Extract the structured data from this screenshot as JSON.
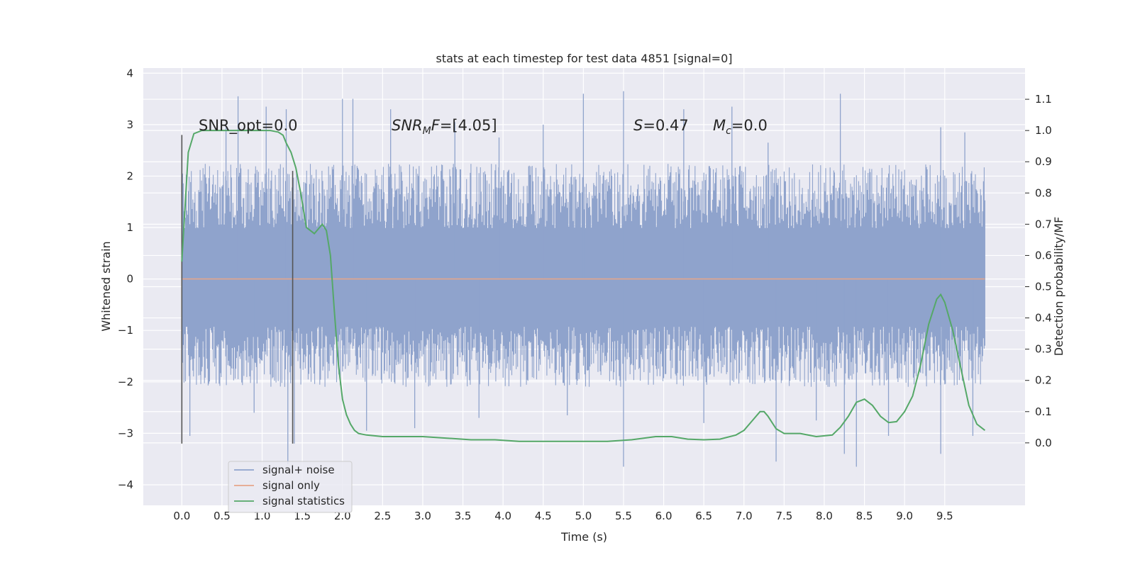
{
  "chart_data": {
    "type": "line",
    "title": "stats at each timestep for test data 4851 [signal=0]",
    "xlabel": "Time (s)",
    "ylabel": "Whitened strain",
    "y2label": "Detection probability/MF",
    "xlim": [
      -0.48,
      10.5
    ],
    "ylim": [
      -4.4,
      4.1
    ],
    "y2lim": [
      -0.2,
      1.2
    ],
    "x_ticks": [
      0.0,
      0.5,
      1.0,
      1.5,
      2.0,
      2.5,
      3.0,
      3.5,
      4.0,
      4.5,
      5.0,
      5.5,
      6.0,
      6.5,
      7.0,
      7.5,
      8.0,
      8.5,
      9.0,
      9.5
    ],
    "x_tick_labels": [
      "0.0",
      "0.5",
      "1.0",
      "1.5",
      "2.0",
      "2.5",
      "3.0",
      "3.5",
      "4.0",
      "4.5",
      "5.0",
      "5.5",
      "6.0",
      "6.5",
      "7.0",
      "7.5",
      "8.0",
      "8.5",
      "9.0",
      "9.5"
    ],
    "y_ticks": [
      -4,
      -3,
      -2,
      -1,
      0,
      1,
      2,
      3,
      4
    ],
    "y_tick_labels": [
      "−4",
      "−3",
      "−2",
      "−1",
      "0",
      "1",
      "2",
      "3",
      "4"
    ],
    "y2_ticks": [
      0.0,
      0.1,
      0.2,
      0.3,
      0.4,
      0.5,
      0.6,
      0.7,
      0.8,
      0.9,
      1.0,
      1.1
    ],
    "y2_tick_labels": [
      "0.0",
      "0.1",
      "0.2",
      "0.3",
      "0.4",
      "0.5",
      "0.6",
      "0.7",
      "0.8",
      "0.9",
      "1.0",
      "1.1"
    ],
    "grid": true,
    "legend_position": "lower-left",
    "annotations": {
      "snr_opt": "SNR_opt=0.0",
      "snr_mf_base": "SNR",
      "snr_mf_sub": "M",
      "snr_mf_f": "F",
      "snr_mf_value": "=[4.05]",
      "s_label": "S",
      "s_value": "=0.47",
      "mc_base": "M",
      "mc_sub": "c",
      "mc_value": "=0.0"
    },
    "vertical_lines": [
      {
        "x": 0.0,
        "y_range": [
          -3.2,
          2.8
        ]
      },
      {
        "x": 1.38,
        "y_range": [
          -3.2,
          2.1
        ]
      }
    ],
    "series": [
      {
        "name": "signal+ noise",
        "color": "#8fa3cc",
        "axis": "left",
        "x_range": [
          0.0,
          10.0
        ],
        "envelope_upper": 1.6,
        "envelope_lower": -1.5,
        "spikes": [
          [
            0.7,
            3.55
          ],
          [
            1.05,
            3.35
          ],
          [
            1.3,
            3.3
          ],
          [
            2.0,
            3.5
          ],
          [
            2.13,
            3.5
          ],
          [
            2.6,
            3.3
          ],
          [
            3.4,
            3.05
          ],
          [
            4.5,
            3.0
          ],
          [
            5.0,
            3.6
          ],
          [
            5.5,
            3.65
          ],
          [
            6.25,
            3.3
          ],
          [
            6.85,
            3.35
          ],
          [
            8.2,
            3.6
          ],
          [
            9.45,
            2.95
          ],
          [
            9.75,
            2.85
          ],
          [
            0.55,
            2.95
          ],
          [
            3.95,
            2.75
          ],
          [
            7.3,
            2.65
          ],
          [
            0.1,
            -3.05
          ],
          [
            1.32,
            -3.6
          ],
          [
            1.4,
            -3.2
          ],
          [
            2.3,
            -2.95
          ],
          [
            2.9,
            -2.9
          ],
          [
            5.5,
            -3.65
          ],
          [
            7.4,
            -3.55
          ],
          [
            8.25,
            -3.4
          ],
          [
            8.4,
            -3.65
          ],
          [
            8.8,
            -3.05
          ],
          [
            9.45,
            -3.4
          ],
          [
            9.85,
            -3.05
          ],
          [
            0.9,
            -2.6
          ],
          [
            3.7,
            -2.7
          ],
          [
            4.8,
            -2.65
          ],
          [
            6.5,
            -2.8
          ],
          [
            7.9,
            -2.75
          ]
        ]
      },
      {
        "name": "signal only",
        "color": "#e5a58a",
        "axis": "left",
        "x": [
          0.0,
          10.0
        ],
        "values": [
          0.0,
          0.0
        ]
      },
      {
        "name": "signal statistics",
        "color": "#55a868",
        "axis": "right",
        "x": [
          0.0,
          0.08,
          0.15,
          0.25,
          0.4,
          0.6,
          0.8,
          1.0,
          1.1,
          1.2,
          1.26,
          1.3,
          1.36,
          1.42,
          1.48,
          1.55,
          1.65,
          1.75,
          1.8,
          1.85,
          1.9,
          1.95,
          2.0,
          2.05,
          2.1,
          2.15,
          2.2,
          2.3,
          2.5,
          2.8,
          3.0,
          3.3,
          3.6,
          3.9,
          4.2,
          4.5,
          5.0,
          5.3,
          5.6,
          5.9,
          6.1,
          6.3,
          6.5,
          6.7,
          6.9,
          7.0,
          7.1,
          7.2,
          7.25,
          7.3,
          7.4,
          7.5,
          7.7,
          7.9,
          8.1,
          8.2,
          8.3,
          8.4,
          8.5,
          8.6,
          8.7,
          8.8,
          8.9,
          9.0,
          9.1,
          9.2,
          9.3,
          9.4,
          9.45,
          9.5,
          9.6,
          9.7,
          9.8,
          9.9,
          10.0
        ],
        "values": [
          0.58,
          0.93,
          0.99,
          1.0,
          1.0,
          1.0,
          1.0,
          1.0,
          1.0,
          0.995,
          0.985,
          0.96,
          0.93,
          0.88,
          0.8,
          0.69,
          0.67,
          0.7,
          0.68,
          0.6,
          0.42,
          0.25,
          0.14,
          0.09,
          0.06,
          0.04,
          0.03,
          0.025,
          0.02,
          0.02,
          0.02,
          0.015,
          0.01,
          0.01,
          0.005,
          0.005,
          0.005,
          0.005,
          0.01,
          0.02,
          0.02,
          0.012,
          0.01,
          0.012,
          0.025,
          0.04,
          0.07,
          0.1,
          0.1,
          0.085,
          0.045,
          0.03,
          0.03,
          0.02,
          0.025,
          0.05,
          0.085,
          0.13,
          0.14,
          0.12,
          0.085,
          0.065,
          0.068,
          0.1,
          0.15,
          0.25,
          0.38,
          0.46,
          0.475,
          0.45,
          0.36,
          0.24,
          0.12,
          0.06,
          0.04
        ]
      }
    ]
  }
}
